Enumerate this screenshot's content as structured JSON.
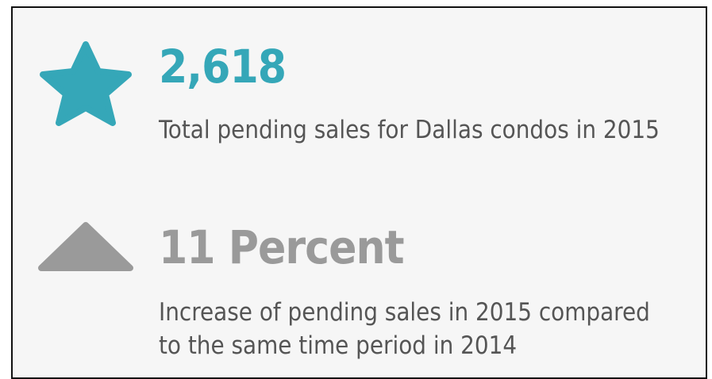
{
  "stats": [
    {
      "value": "2,618",
      "description": "Total pending sales for Dallas condos in 2015"
    },
    {
      "value": "11 Percent",
      "description": "Increase of pending sales in 2015 compared to the same time period in 2014"
    }
  ]
}
